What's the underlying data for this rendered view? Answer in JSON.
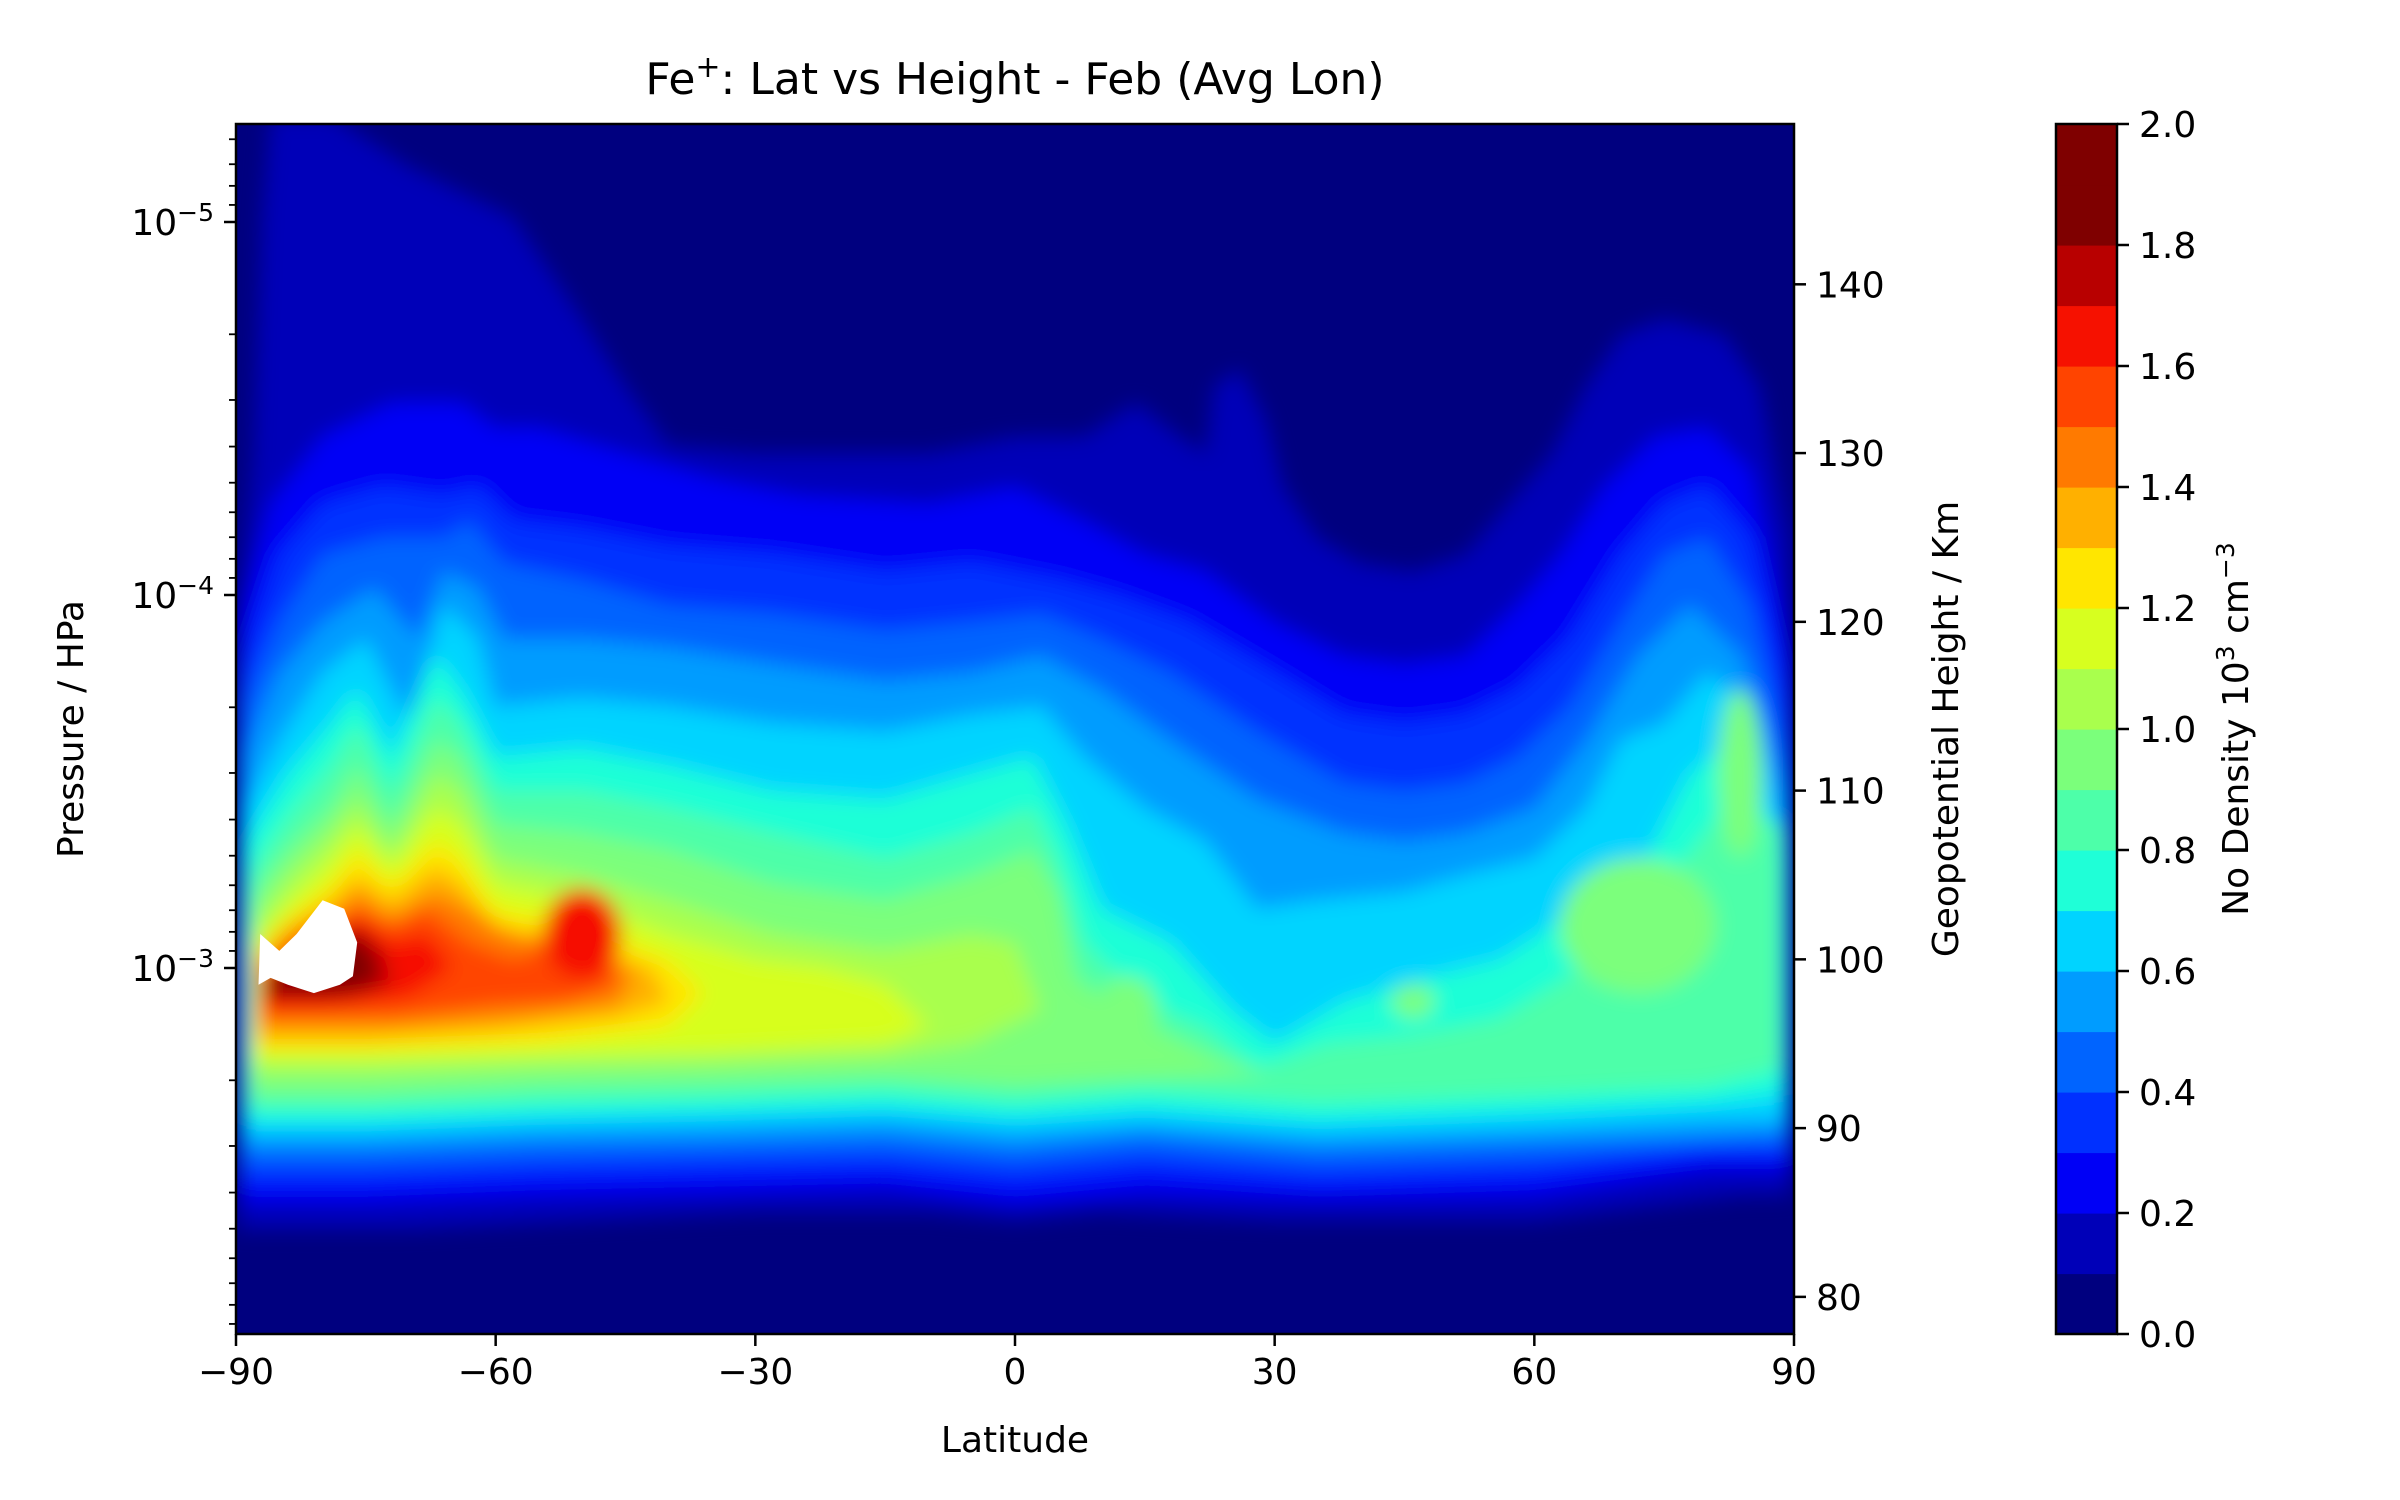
{
  "chart_data": {
    "type": "contour",
    "title": "Fe⁺: Lat vs Height - Feb (Avg Lon)",
    "title_parts": {
      "base": "Fe",
      "sup": "+",
      "rest": ": Lat vs Height - Feb (Avg Lon)"
    },
    "xlabel": "Latitude",
    "ylabel_left": "Pressure / HPa",
    "ylabel_right": "Geopotential Height / Km",
    "xlim": [
      -90,
      90
    ],
    "x_ticks": [
      -90,
      -60,
      -30,
      0,
      30,
      60,
      90
    ],
    "x_tick_labels": [
      "−90",
      "−60",
      "−30",
      "0",
      "30",
      "60",
      "90"
    ],
    "y_left_scale": "log",
    "y_left_ticks": [
      {
        "value": 1e-05,
        "base": "10",
        "exp": "−5"
      },
      {
        "value": 0.0001,
        "base": "10",
        "exp": "−4"
      },
      {
        "value": 0.001,
        "base": "10",
        "exp": "−3"
      }
    ],
    "y_right_ticks": [
      80,
      90,
      100,
      110,
      120,
      130,
      140
    ],
    "y_right_range": [
      77.8,
      149.5
    ],
    "colorbar": {
      "label": "No Density 10³ cm⁻³",
      "label_parts": {
        "base": "No Density 10",
        "sup1": "3",
        "mid": " cm",
        "sup2": "−3"
      },
      "range": [
        0,
        2.0
      ],
      "ticks": [
        "0.0",
        "0.2",
        "0.4",
        "0.6",
        "0.8",
        "1.0",
        "1.2",
        "1.4",
        "1.6",
        "1.8",
        "2.0"
      ],
      "levels": [
        0.0,
        0.1,
        0.2,
        0.3,
        0.4,
        0.5,
        0.6,
        0.7,
        0.8,
        0.9,
        1.0,
        1.1,
        1.2,
        1.3,
        1.4,
        1.5,
        1.6,
        1.7,
        1.8,
        1.9,
        2.0
      ],
      "colors": [
        "#00007f",
        "#0000b8",
        "#0000f6",
        "#0030ff",
        "#0064ff",
        "#009cff",
        "#00d4ff",
        "#1fffd7",
        "#4dffa9",
        "#7bff7b",
        "#a9ff4d",
        "#d7ff1f",
        "#ffe600",
        "#ffb000",
        "#ff7a00",
        "#ff4400",
        "#f61100",
        "#b80000",
        "#7f0000",
        "#7f0000"
      ]
    },
    "features": [
      {
        "name": "southern peak (>2.0, white)",
        "lat": -79,
        "height_km": 103.5,
        "value": 2.0
      },
      {
        "name": "secondary max",
        "lat": -50,
        "height_km": 104,
        "value": 1.65
      },
      {
        "name": "northern max",
        "lat": 75,
        "height_km": 102,
        "value": 0.9
      },
      {
        "name": "high-lat NH max",
        "lat": 84,
        "height_km": 112,
        "value": 0.95
      }
    ],
    "grid": false
  }
}
